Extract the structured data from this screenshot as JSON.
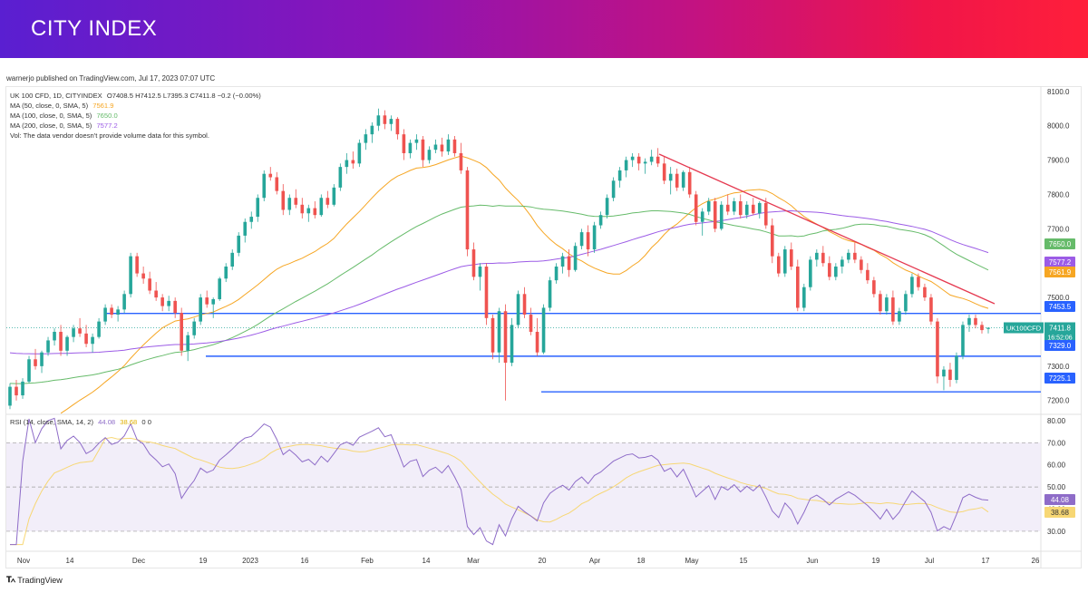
{
  "brand": "CITY INDEX",
  "published": "warnerjo published on TradingView.com, Jul 17, 2023 07:07 UTC",
  "footer": {
    "logo": "TradingView"
  },
  "colors": {
    "candle_up": "#26a69a",
    "candle_down": "#ef5350",
    "ma50": "#f6a623",
    "ma100": "#66bb6a",
    "ma200": "#9c5ce6",
    "level": "#2962ff",
    "trend": "#e53950",
    "rsi": "#8e6cc8",
    "rsi_ma": "#f7d774"
  },
  "legend": {
    "symbol": "UK 100 CFD, 1D, CITYINDEX",
    "ohlc": "O7408.5  H7412.5  L7395.3  C7411.8  −0.2 (−0.00%)",
    "ma50_label": "MA (50, close, 0, SMA, 5)",
    "ma50_value": "7561.9",
    "ma100_label": "MA (100, close, 0, SMA, 5)",
    "ma100_value": "7650.0",
    "ma200_label": "MA (200, close, 0, SMA, 5)",
    "ma200_value": "7577.2",
    "vol": "Vol: The data vendor doesn't provide volume data for this symbol.",
    "rsi_label": "RSI (14, close, SMA, 14, 2)",
    "rsi_value": "44.08",
    "rsi_ma_value": "38.68",
    "rsi_extra": "0  0"
  },
  "chart_data": [
    {
      "type": "candlestick",
      "symbol": "UK 100 CFD, 1D, CITYINDEX",
      "x_ticks": [
        "Nov",
        "14",
        "Dec",
        "19",
        "2023",
        "16",
        "Feb",
        "14",
        "Mar",
        "20",
        "Apr",
        "18",
        "May",
        "15",
        "Jun",
        "19",
        "Jul",
        "17",
        "26"
      ],
      "y_ticks": [
        "8100.0",
        "8000.0",
        "7900.0",
        "7800.0",
        "7700.0",
        "7600.0",
        "7500.0",
        "7400.0",
        "7300.0",
        "7200.0"
      ],
      "ylim": [
        7165,
        8110
      ],
      "horizontal_levels": [
        7453.5,
        7329.0,
        7225.1
      ],
      "price_tags": [
        {
          "label": "7650.0",
          "value": 7650.0,
          "color": "#66bb6a"
        },
        {
          "label": "7577.2",
          "value": 7577.2,
          "color": "#9c5ce6"
        },
        {
          "label": "7561.9",
          "value": 7561.9,
          "color": "#f6a623"
        },
        {
          "label": "7453.5",
          "value": 7453.5,
          "color": "#2962ff"
        },
        {
          "label": "7411.8",
          "value": 7411.8,
          "color": "#26a69a",
          "symbol": "UK100CFD",
          "countdown": "16:52:06"
        },
        {
          "label": "7329.0",
          "value": 7329.0,
          "color": "#2962ff"
        },
        {
          "label": "7225.1",
          "value": 7225.1,
          "color": "#2962ff"
        }
      ],
      "candles": [
        [
          7185,
          7250,
          7175,
          7240
        ],
        [
          7240,
          7260,
          7200,
          7215
        ],
        [
          7215,
          7265,
          7205,
          7255
        ],
        [
          7255,
          7330,
          7250,
          7320
        ],
        [
          7320,
          7350,
          7290,
          7300
        ],
        [
          7300,
          7345,
          7280,
          7340
        ],
        [
          7340,
          7385,
          7330,
          7375
        ],
        [
          7375,
          7410,
          7360,
          7400
        ],
        [
          7400,
          7420,
          7330,
          7345
        ],
        [
          7345,
          7390,
          7330,
          7385
        ],
        [
          7385,
          7420,
          7370,
          7410
        ],
        [
          7410,
          7440,
          7385,
          7395
        ],
        [
          7395,
          7420,
          7355,
          7365
        ],
        [
          7365,
          7395,
          7340,
          7385
        ],
        [
          7385,
          7440,
          7380,
          7430
        ],
        [
          7430,
          7480,
          7420,
          7470
        ],
        [
          7470,
          7480,
          7440,
          7450
        ],
        [
          7450,
          7475,
          7430,
          7465
        ],
        [
          7465,
          7520,
          7455,
          7510
        ],
        [
          7510,
          7630,
          7500,
          7620
        ],
        [
          7620,
          7630,
          7560,
          7570
        ],
        [
          7570,
          7590,
          7540,
          7555
        ],
        [
          7555,
          7575,
          7510,
          7520
        ],
        [
          7520,
          7545,
          7490,
          7500
        ],
        [
          7500,
          7510,
          7460,
          7475
        ],
        [
          7475,
          7505,
          7460,
          7490
        ],
        [
          7490,
          7500,
          7440,
          7455
        ],
        [
          7455,
          7470,
          7330,
          7345
        ],
        [
          7345,
          7400,
          7315,
          7390
        ],
        [
          7390,
          7440,
          7380,
          7430
        ],
        [
          7430,
          7510,
          7420,
          7500
        ],
        [
          7500,
          7520,
          7470,
          7480
        ],
        [
          7480,
          7500,
          7440,
          7495
        ],
        [
          7495,
          7560,
          7490,
          7555
        ],
        [
          7555,
          7600,
          7545,
          7590
        ],
        [
          7590,
          7640,
          7580,
          7630
        ],
        [
          7630,
          7690,
          7620,
          7680
        ],
        [
          7680,
          7730,
          7660,
          7720
        ],
        [
          7720,
          7750,
          7700,
          7735
        ],
        [
          7735,
          7800,
          7720,
          7790
        ],
        [
          7790,
          7870,
          7780,
          7860
        ],
        [
          7860,
          7880,
          7840,
          7850
        ],
        [
          7850,
          7865,
          7800,
          7810
        ],
        [
          7810,
          7830,
          7740,
          7755
        ],
        [
          7755,
          7800,
          7740,
          7790
        ],
        [
          7790,
          7815,
          7760,
          7770
        ],
        [
          7770,
          7790,
          7730,
          7745
        ],
        [
          7745,
          7770,
          7720,
          7760
        ],
        [
          7760,
          7780,
          7730,
          7740
        ],
        [
          7740,
          7800,
          7735,
          7790
        ],
        [
          7790,
          7810,
          7760,
          7770
        ],
        [
          7770,
          7830,
          7765,
          7820
        ],
        [
          7820,
          7890,
          7810,
          7880
        ],
        [
          7880,
          7920,
          7860,
          7900
        ],
        [
          7900,
          7925,
          7875,
          7890
        ],
        [
          7890,
          7960,
          7880,
          7950
        ],
        [
          7950,
          7990,
          7930,
          7975
        ],
        [
          7975,
          8010,
          7950,
          8000
        ],
        [
          8000,
          8050,
          7985,
          8030
        ],
        [
          8030,
          8045,
          7990,
          8005
        ],
        [
          8005,
          8030,
          7985,
          8020
        ],
        [
          8020,
          8025,
          7960,
          7975
        ],
        [
          7975,
          7990,
          7900,
          7920
        ],
        [
          7920,
          7960,
          7905,
          7950
        ],
        [
          7950,
          7975,
          7930,
          7960
        ],
        [
          7960,
          7970,
          7880,
          7900
        ],
        [
          7900,
          7940,
          7890,
          7930
        ],
        [
          7930,
          7960,
          7920,
          7945
        ],
        [
          7945,
          7965,
          7910,
          7925
        ],
        [
          7925,
          7975,
          7915,
          7960
        ],
        [
          7960,
          7970,
          7910,
          7920
        ],
        [
          7920,
          7950,
          7860,
          7870
        ],
        [
          7870,
          7880,
          7620,
          7640
        ],
        [
          7640,
          7660,
          7550,
          7560
        ],
        [
          7560,
          7600,
          7520,
          7590
        ],
        [
          7590,
          7600,
          7420,
          7440
        ],
        [
          7440,
          7450,
          7320,
          7340
        ],
        [
          7340,
          7470,
          7310,
          7460
        ],
        [
          7460,
          7480,
          7200,
          7310
        ],
        [
          7310,
          7440,
          7300,
          7420
        ],
        [
          7420,
          7520,
          7410,
          7510
        ],
        [
          7510,
          7530,
          7440,
          7450
        ],
        [
          7450,
          7470,
          7390,
          7400
        ],
        [
          7400,
          7440,
          7330,
          7340
        ],
        [
          7340,
          7480,
          7335,
          7470
        ],
        [
          7470,
          7560,
          7460,
          7550
        ],
        [
          7550,
          7600,
          7540,
          7590
        ],
        [
          7590,
          7630,
          7570,
          7620
        ],
        [
          7620,
          7640,
          7560,
          7580
        ],
        [
          7580,
          7660,
          7575,
          7650
        ],
        [
          7650,
          7700,
          7640,
          7690
        ],
        [
          7690,
          7710,
          7620,
          7640
        ],
        [
          7640,
          7720,
          7630,
          7710
        ],
        [
          7710,
          7750,
          7700,
          7740
        ],
        [
          7740,
          7800,
          7730,
          7790
        ],
        [
          7790,
          7850,
          7780,
          7840
        ],
        [
          7840,
          7880,
          7820,
          7870
        ],
        [
          7870,
          7910,
          7850,
          7900
        ],
        [
          7900,
          7920,
          7880,
          7910
        ],
        [
          7910,
          7920,
          7870,
          7890
        ],
        [
          7890,
          7905,
          7860,
          7895
        ],
        [
          7895,
          7930,
          7885,
          7910
        ],
        [
          7910,
          7935,
          7880,
          7890
        ],
        [
          7890,
          7910,
          7830,
          7840
        ],
        [
          7840,
          7880,
          7800,
          7860
        ],
        [
          7860,
          7875,
          7810,
          7820
        ],
        [
          7820,
          7870,
          7810,
          7865
        ],
        [
          7865,
          7880,
          7790,
          7800
        ],
        [
          7800,
          7810,
          7710,
          7720
        ],
        [
          7720,
          7760,
          7680,
          7750
        ],
        [
          7750,
          7790,
          7740,
          7780
        ],
        [
          7780,
          7790,
          7690,
          7700
        ],
        [
          7700,
          7780,
          7695,
          7770
        ],
        [
          7770,
          7800,
          7740,
          7750
        ],
        [
          7750,
          7790,
          7740,
          7780
        ],
        [
          7780,
          7800,
          7730,
          7740
        ],
        [
          7740,
          7780,
          7730,
          7770
        ],
        [
          7770,
          7790,
          7740,
          7745
        ],
        [
          7745,
          7780,
          7730,
          7775
        ],
        [
          7775,
          7790,
          7700,
          7710
        ],
        [
          7710,
          7730,
          7600,
          7620
        ],
        [
          7620,
          7630,
          7560,
          7570
        ],
        [
          7570,
          7650,
          7560,
          7640
        ],
        [
          7640,
          7660,
          7580,
          7590
        ],
        [
          7590,
          7610,
          7460,
          7470
        ],
        [
          7470,
          7540,
          7460,
          7530
        ],
        [
          7530,
          7620,
          7520,
          7610
        ],
        [
          7610,
          7640,
          7590,
          7630
        ],
        [
          7630,
          7650,
          7590,
          7600
        ],
        [
          7600,
          7620,
          7550,
          7560
        ],
        [
          7560,
          7600,
          7550,
          7590
        ],
        [
          7590,
          7620,
          7570,
          7610
        ],
        [
          7610,
          7640,
          7600,
          7630
        ],
        [
          7630,
          7660,
          7600,
          7610
        ],
        [
          7610,
          7620,
          7570,
          7580
        ],
        [
          7580,
          7600,
          7540,
          7550
        ],
        [
          7550,
          7560,
          7500,
          7510
        ],
        [
          7510,
          7520,
          7450,
          7460
        ],
        [
          7460,
          7510,
          7450,
          7500
        ],
        [
          7500,
          7520,
          7420,
          7430
        ],
        [
          7430,
          7470,
          7420,
          7460
        ],
        [
          7460,
          7520,
          7450,
          7510
        ],
        [
          7510,
          7570,
          7500,
          7560
        ],
        [
          7560,
          7570,
          7520,
          7530
        ],
        [
          7530,
          7540,
          7490,
          7500
        ],
        [
          7500,
          7510,
          7420,
          7430
        ],
        [
          7430,
          7440,
          7250,
          7270
        ],
        [
          7270,
          7300,
          7230,
          7290
        ],
        [
          7290,
          7310,
          7240,
          7260
        ],
        [
          7260,
          7340,
          7250,
          7330
        ],
        [
          7330,
          7430,
          7320,
          7420
        ],
        [
          7420,
          7450,
          7400,
          7440
        ],
        [
          7440,
          7450,
          7410,
          7420
        ],
        [
          7420,
          7430,
          7395,
          7405
        ],
        [
          7408.5,
          7412.5,
          7395.3,
          7411.8
        ]
      ],
      "series": [
        {
          "name": "MA (50, close, 0, SMA, 5)",
          "last": 7561.9,
          "color": "#f6a623"
        },
        {
          "name": "MA (100, close, 0, SMA, 5)",
          "last": 7650.0,
          "color": "#66bb6a"
        },
        {
          "name": "MA (200, close, 0, SMA, 5)",
          "last": 7577.2,
          "color": "#9c5ce6"
        }
      ]
    },
    {
      "type": "line",
      "title": "RSI (14, close, SMA, 14, 2)",
      "y_ticks": [
        "80.00",
        "70.00",
        "60.00",
        "50.00",
        "40.00",
        "30.00"
      ],
      "ylim": [
        23,
        82
      ],
      "band": [
        30,
        70
      ],
      "tags": [
        {
          "label": "44.08",
          "value": 44.08,
          "color": "#8e6cc8"
        },
        {
          "label": "38.68",
          "value": 38.68,
          "color": "#f7d774"
        }
      ],
      "series": [
        {
          "name": "RSI",
          "last": 44.08
        },
        {
          "name": "RSI MA",
          "last": 38.68
        }
      ]
    }
  ]
}
